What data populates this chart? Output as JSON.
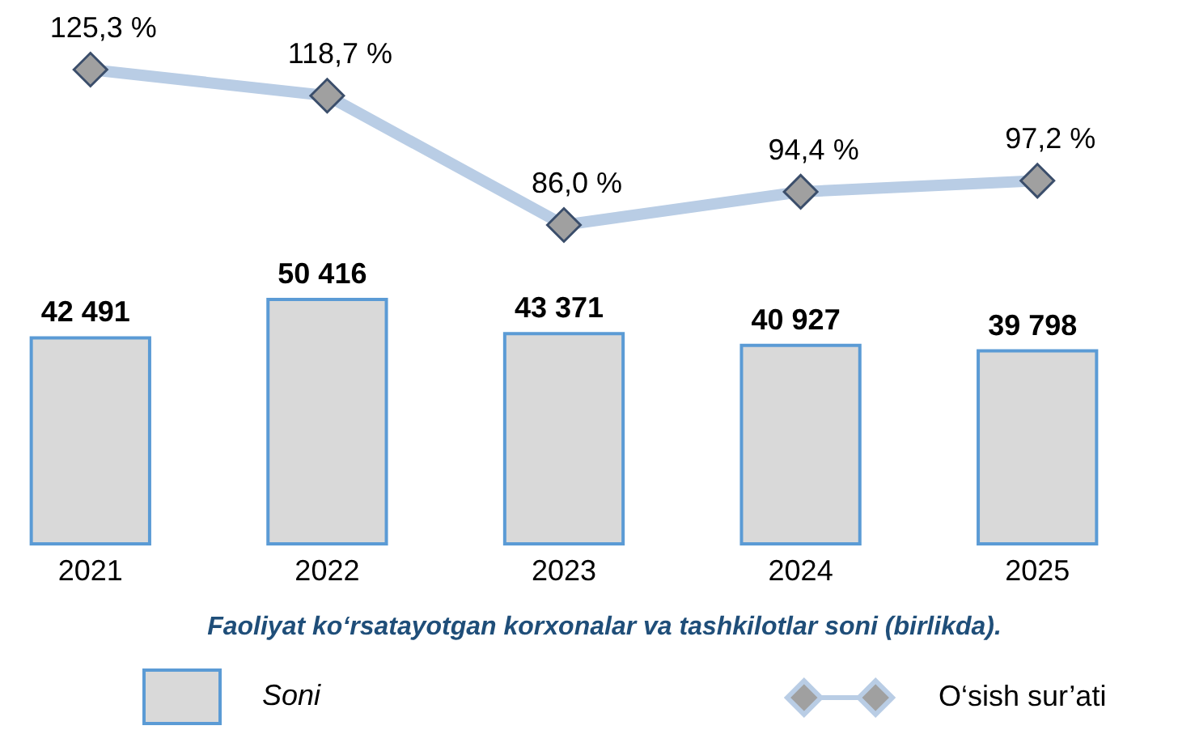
{
  "chart_data": [
    {
      "type": "line",
      "categories": [
        "2021",
        "2022",
        "2023",
        "2024",
        "2025"
      ],
      "series": [
        {
          "name": "O‘sish sur’ati",
          "color": "#b9cde5",
          "values": [
            125.3,
            118.7,
            86.0,
            94.4,
            97.2
          ],
          "value_labels": [
            "125,3 %",
            "118,7 %",
            "86,0 %",
            "94,4 %",
            "97,2 %"
          ]
        }
      ],
      "marker": "diamond",
      "legend": "bottom",
      "tick_labels": false
    },
    {
      "type": "bar",
      "title": "Faoliyat ko‘rsatayotgan korxonalar va tashkilotlar soni (birlikda).",
      "categories": [
        "2021",
        "2022",
        "2023",
        "2024",
        "2025"
      ],
      "series": [
        {
          "name": "Soni",
          "color": "#d9d9d9",
          "values": [
            42491,
            50416,
            43371,
            40927,
            39798
          ],
          "value_labels": [
            "42 491",
            "50 416",
            "43 371",
            "40 927",
            "39 798"
          ]
        }
      ],
      "legend": "bottom",
      "tick_labels": "x"
    }
  ]
}
